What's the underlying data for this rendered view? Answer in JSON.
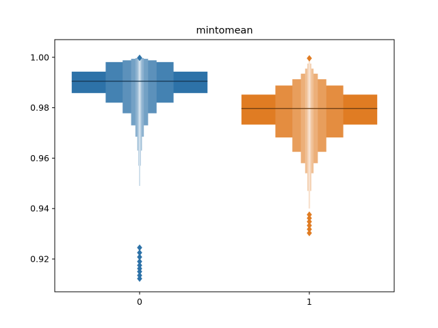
{
  "chart_data": {
    "type": "boxen",
    "title": "mintomean",
    "xlabel": "",
    "ylabel": "",
    "categories": [
      "0",
      "1"
    ],
    "ylim": [
      0.907,
      1.007
    ],
    "yticks": [
      "0.92",
      "0.94",
      "0.96",
      "0.98",
      "1.00"
    ],
    "grid": false,
    "legend": "none",
    "series": [
      {
        "category": "0",
        "color": "#2d72a8",
        "median": 0.9905,
        "boxes": [
          {
            "lower": 0.9858,
            "upper": 0.9943,
            "width_frac": 1.0
          },
          {
            "lower": 0.982,
            "upper": 0.9981,
            "width_frac": 0.5
          },
          {
            "lower": 0.9778,
            "upper": 0.9988,
            "width_frac": 0.25
          },
          {
            "lower": 0.973,
            "upper": 0.9994,
            "width_frac": 0.125
          },
          {
            "lower": 0.9685,
            "upper": 0.9997,
            "width_frac": 0.0625
          },
          {
            "lower": 0.963,
            "upper": 0.9999,
            "width_frac": 0.035
          },
          {
            "lower": 0.957,
            "upper": 1.0,
            "width_frac": 0.02
          },
          {
            "lower": 0.949,
            "upper": 1.0,
            "width_frac": 0.01
          }
        ],
        "outliers": [
          0.9122,
          0.9135,
          0.915,
          0.9162,
          0.9175,
          0.919,
          0.9208,
          0.9225,
          0.9245,
          0.9998
        ]
      },
      {
        "category": "1",
        "color": "#e07c23",
        "median": 0.9797,
        "boxes": [
          {
            "lower": 0.9733,
            "upper": 0.9852,
            "width_frac": 1.0
          },
          {
            "lower": 0.9682,
            "upper": 0.9888,
            "width_frac": 0.5
          },
          {
            "lower": 0.9625,
            "upper": 0.9913,
            "width_frac": 0.25
          },
          {
            "lower": 0.958,
            "upper": 0.9935,
            "width_frac": 0.125
          },
          {
            "lower": 0.954,
            "upper": 0.9955,
            "width_frac": 0.0625
          },
          {
            "lower": 0.947,
            "upper": 0.9975,
            "width_frac": 0.03
          },
          {
            "lower": 0.94,
            "upper": 0.999,
            "width_frac": 0.012
          }
        ],
        "outliers": [
          0.9303,
          0.9318,
          0.9333,
          0.9348,
          0.9362,
          0.9376,
          0.9996
        ]
      }
    ]
  }
}
